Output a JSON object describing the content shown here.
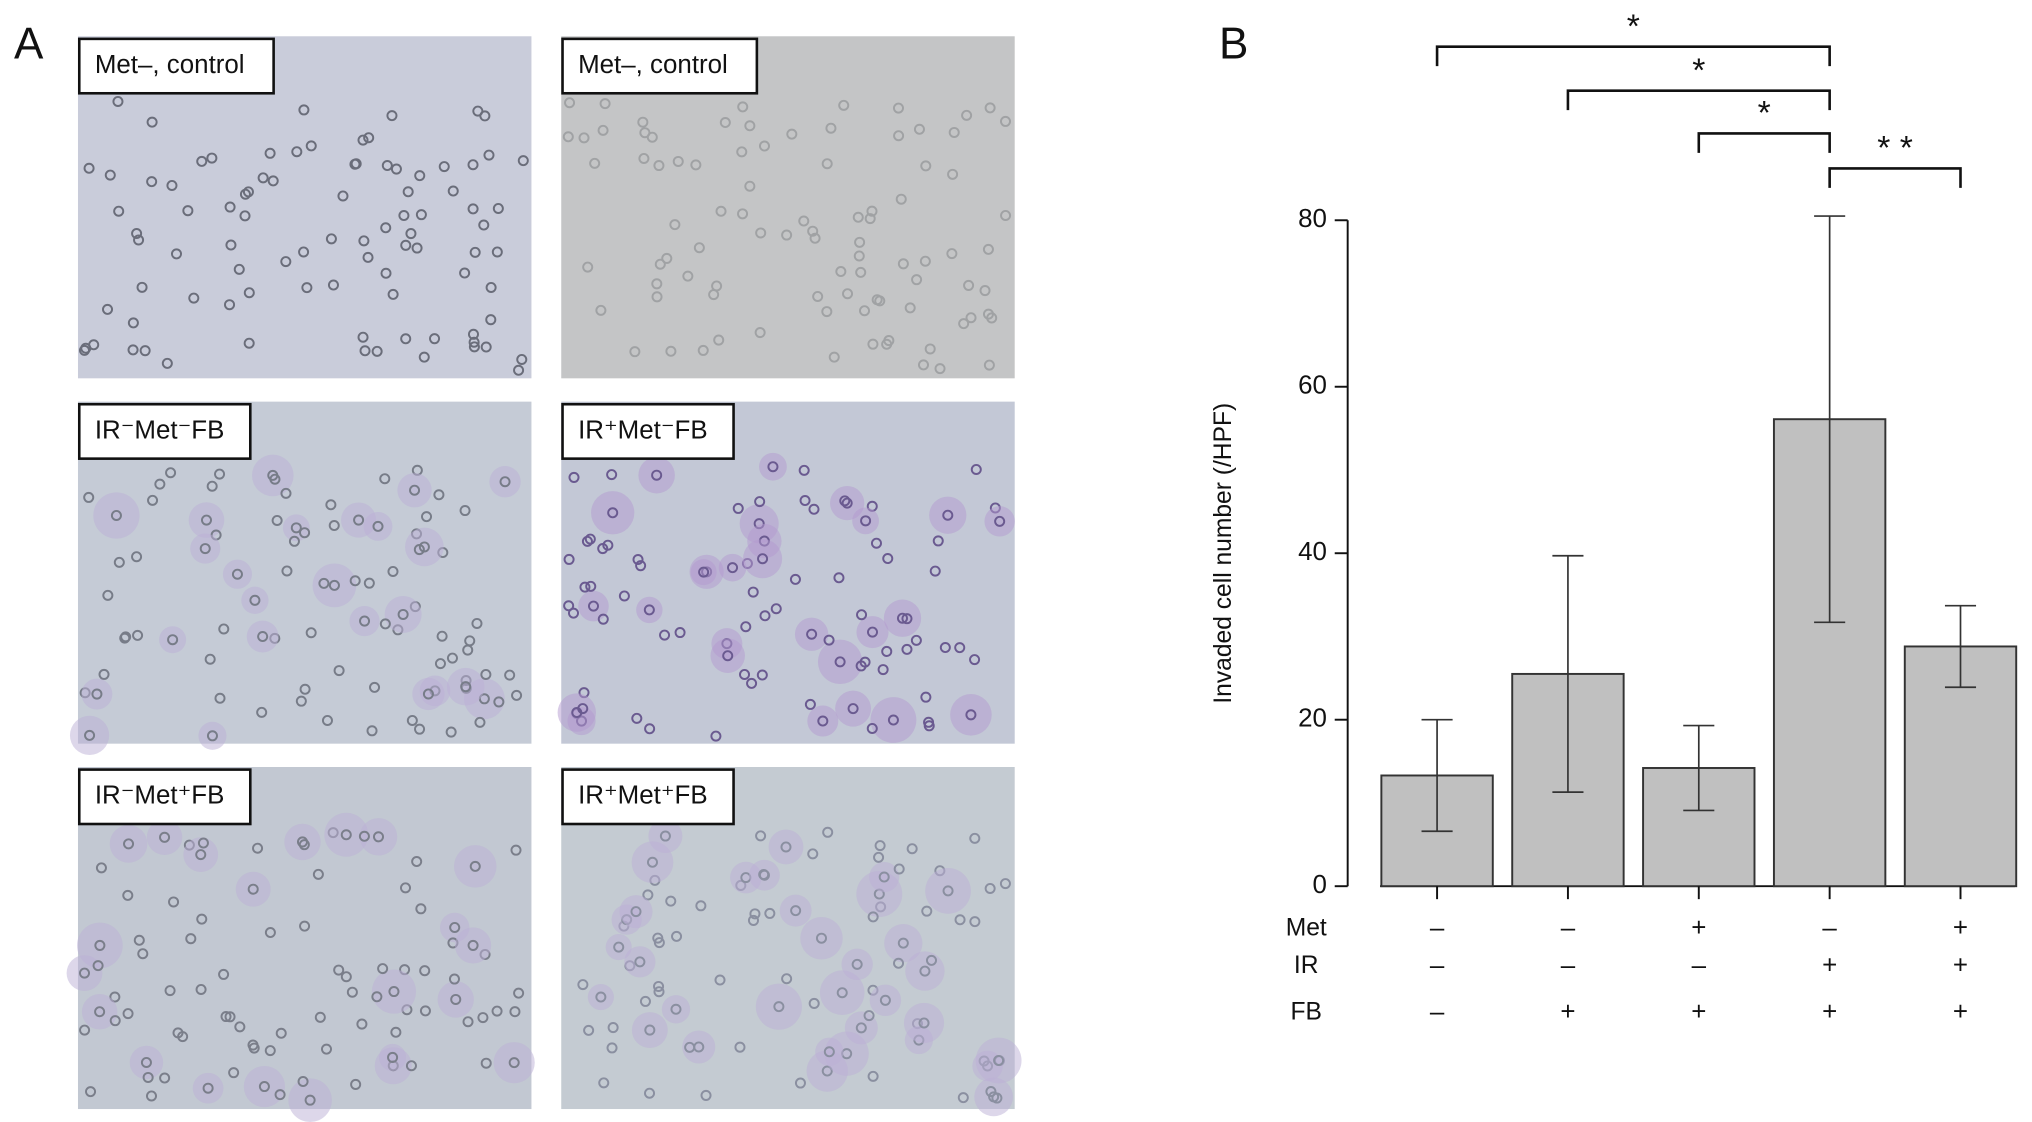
{
  "panel_a": {
    "letter": "A",
    "micrographs": [
      {
        "label": "Met–, control"
      },
      {
        "label": "Met–, control"
      },
      {
        "label": "IR⁻Met⁻FB"
      },
      {
        "label": "IR⁺Met⁻FB"
      },
      {
        "label": "IR⁻Met⁺FB"
      },
      {
        "label": "IR⁺Met⁺FB"
      }
    ]
  },
  "chart_data": {
    "type": "bar",
    "letter": "B",
    "ylabel": "Invaded cell number (/HPF)",
    "values": [
      13.3,
      25.5,
      14.2,
      56.1,
      28.8
    ],
    "errors": [
      6.7,
      14.2,
      5.1,
      24.4,
      4.9
    ],
    "color": "#c0c0c0",
    "ylim": [
      0,
      80
    ],
    "yticks": [
      0,
      20,
      40,
      60,
      80
    ],
    "conditions": [
      {
        "name": "Met",
        "values": [
          "–",
          "–",
          "+",
          "–",
          "+"
        ]
      },
      {
        "name": "IR",
        "values": [
          "–",
          "–",
          "–",
          "+",
          "+"
        ]
      },
      {
        "name": "FB",
        "values": [
          "–",
          "+",
          "+",
          "+",
          "+"
        ]
      }
    ],
    "significance": [
      {
        "from": 0,
        "to": 3,
        "label": "*"
      },
      {
        "from": 1,
        "to": 3,
        "label": "*"
      },
      {
        "from": 2,
        "to": 3,
        "label": "*"
      },
      {
        "from": 3,
        "to": 4,
        "label": "* *"
      }
    ]
  }
}
